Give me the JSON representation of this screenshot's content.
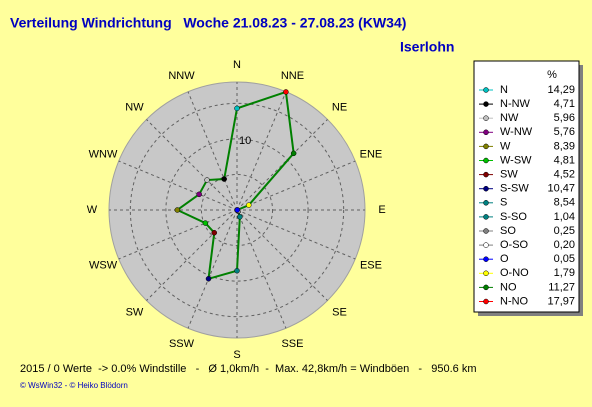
{
  "chart_data": {
    "type": "radar",
    "title": "Verteilung Windrichtung   Woche 21.08.23 - 27.08.23 (KW34)",
    "subtitle": "Iserlohn",
    "axis_labels": [
      "N",
      "NNE",
      "NE",
      "ENE",
      "E",
      "ESE",
      "SE",
      "SSE",
      "S",
      "SSW",
      "SW",
      "WSW",
      "W",
      "WNW",
      "NW",
      "NNW"
    ],
    "categories": [
      "N",
      "N-NW",
      "NW",
      "W-NW",
      "W",
      "W-SW",
      "SW",
      "S-SW",
      "S",
      "S-SO",
      "SO",
      "O-SO",
      "O",
      "O-NO",
      "NO",
      "N-NO"
    ],
    "values": [
      14.29,
      4.71,
      5.96,
      5.76,
      8.39,
      4.81,
      4.52,
      10.47,
      8.54,
      1.04,
      0.25,
      0.2,
      0.05,
      1.79,
      11.27,
      17.97
    ],
    "value_labels": [
      "14,29",
      "4,71",
      "5,96",
      "5,76",
      "8,39",
      "4,81",
      "4,52",
      "10,47",
      "8,54",
      "1,04",
      "0,25",
      "0,20",
      "0,05",
      "1,79",
      "11,27",
      "17,97"
    ],
    "colors": [
      "#00c0c0",
      "#000000",
      "#c0c0c0",
      "#800080",
      "#808000",
      "#00c000",
      "#800000",
      "#000080",
      "#008080",
      "#008080",
      "#808080",
      "#ffffff",
      "#0000ff",
      "#ffff00",
      "#008000",
      "#ff0000"
    ],
    "line_color": "#008000",
    "rlim": [
      0,
      18
    ],
    "rgrid": [
      5,
      10,
      15
    ],
    "rtick": 10,
    "legend_header": "%",
    "footer": "2015 / 0 Werte  -> 0.0% Windstille   -   Ø 1,0km/h  -  Max. 42,8km/h = Windböen   -   950.6 km",
    "credits": "© WsWin32  -  © Heiko Blödorn"
  }
}
